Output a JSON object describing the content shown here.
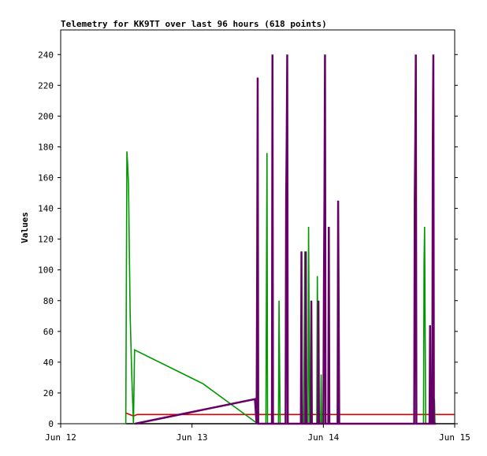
{
  "chart_data": {
    "type": "line",
    "title": "Telemetry for KK9TT over last 96 hours (618 points)",
    "xlabel": "",
    "ylabel": "Values",
    "x_unit": "hours",
    "xlim": [
      0,
      72
    ],
    "ylim": [
      0,
      256
    ],
    "x_ticks": [
      {
        "value": 0,
        "label": "Jun 12"
      },
      {
        "value": 24,
        "label": "Jun 13"
      },
      {
        "value": 48,
        "label": "Jun 14"
      },
      {
        "value": 72,
        "label": "Jun 15"
      }
    ],
    "y_ticks": [
      0,
      20,
      40,
      60,
      80,
      100,
      120,
      140,
      160,
      180,
      200,
      220,
      240
    ],
    "grid": false,
    "legend": "none",
    "series": [
      {
        "color": "#000000",
        "points": [
          [
            11.9,
            0
          ],
          [
            71.9,
            0
          ]
        ]
      },
      {
        "color": "#dd0000",
        "points": [
          [
            11.9,
            7
          ],
          [
            13.3,
            5
          ],
          [
            14.0,
            6
          ],
          [
            20.0,
            6
          ],
          [
            28.0,
            6
          ],
          [
            40.0,
            6
          ],
          [
            56.0,
            6
          ],
          [
            71.9,
            6
          ]
        ]
      },
      {
        "color": "#009900",
        "points": [
          [
            11.9,
            0
          ],
          [
            12.0,
            88
          ],
          [
            12.1,
            177
          ],
          [
            12.25,
            168
          ],
          [
            12.4,
            155
          ],
          [
            12.7,
            70
          ],
          [
            13.0,
            30
          ],
          [
            13.3,
            0
          ],
          [
            13.5,
            48
          ],
          [
            26.0,
            26
          ],
          [
            36.0,
            0
          ],
          [
            37.5,
            0
          ],
          [
            37.6,
            88
          ],
          [
            37.7,
            176
          ],
          [
            37.8,
            0
          ],
          [
            39.8,
            0
          ],
          [
            39.9,
            80
          ],
          [
            40.1,
            0
          ],
          [
            44.4,
            0
          ],
          [
            44.5,
            56
          ],
          [
            44.6,
            112
          ],
          [
            44.7,
            0
          ],
          [
            45.2,
            0
          ],
          [
            45.3,
            128
          ],
          [
            45.5,
            0
          ],
          [
            46.8,
            0
          ],
          [
            46.9,
            96
          ],
          [
            47.1,
            0
          ],
          [
            47.5,
            0
          ],
          [
            47.6,
            32
          ],
          [
            47.7,
            0
          ],
          [
            66.3,
            0
          ],
          [
            66.4,
            104
          ],
          [
            66.5,
            128
          ],
          [
            66.7,
            0
          ],
          [
            68.2,
            0
          ],
          [
            68.3,
            16
          ],
          [
            68.4,
            0
          ]
        ]
      },
      {
        "color": "#660066",
        "points": [
          [
            13.6,
            0
          ],
          [
            35.5,
            16
          ],
          [
            35.8,
            0
          ],
          [
            35.9,
            98
          ],
          [
            36.0,
            225
          ],
          [
            36.1,
            0
          ],
          [
            38.6,
            0
          ],
          [
            38.7,
            240
          ],
          [
            38.8,
            0
          ],
          [
            41.1,
            0
          ],
          [
            41.2,
            145
          ],
          [
            41.3,
            184
          ],
          [
            41.4,
            240
          ],
          [
            41.5,
            0
          ],
          [
            43.9,
            0
          ],
          [
            44.0,
            112
          ],
          [
            44.1,
            0
          ],
          [
            44.7,
            0
          ],
          [
            44.8,
            112
          ],
          [
            44.9,
            0
          ],
          [
            45.7,
            0
          ],
          [
            45.8,
            80
          ],
          [
            45.9,
            0
          ],
          [
            47.0,
            0
          ],
          [
            47.1,
            80
          ],
          [
            47.2,
            0
          ],
          [
            48.0,
            0
          ],
          [
            48.1,
            88
          ],
          [
            48.2,
            145
          ],
          [
            48.3,
            240
          ],
          [
            48.4,
            0
          ],
          [
            48.9,
            0
          ],
          [
            49.0,
            128
          ],
          [
            49.1,
            0
          ],
          [
            50.6,
            0
          ],
          [
            50.7,
            145
          ],
          [
            50.8,
            72
          ],
          [
            50.9,
            0
          ],
          [
            64.6,
            0
          ],
          [
            64.7,
            145
          ],
          [
            64.8,
            184
          ],
          [
            64.9,
            240
          ],
          [
            65.0,
            0
          ],
          [
            67.4,
            0
          ],
          [
            67.5,
            64
          ],
          [
            67.6,
            0
          ],
          [
            67.9,
            0
          ],
          [
            68.0,
            184
          ],
          [
            68.1,
            240
          ],
          [
            68.2,
            0
          ],
          [
            68.5,
            0
          ],
          [
            68.6,
            0
          ]
        ]
      }
    ]
  }
}
